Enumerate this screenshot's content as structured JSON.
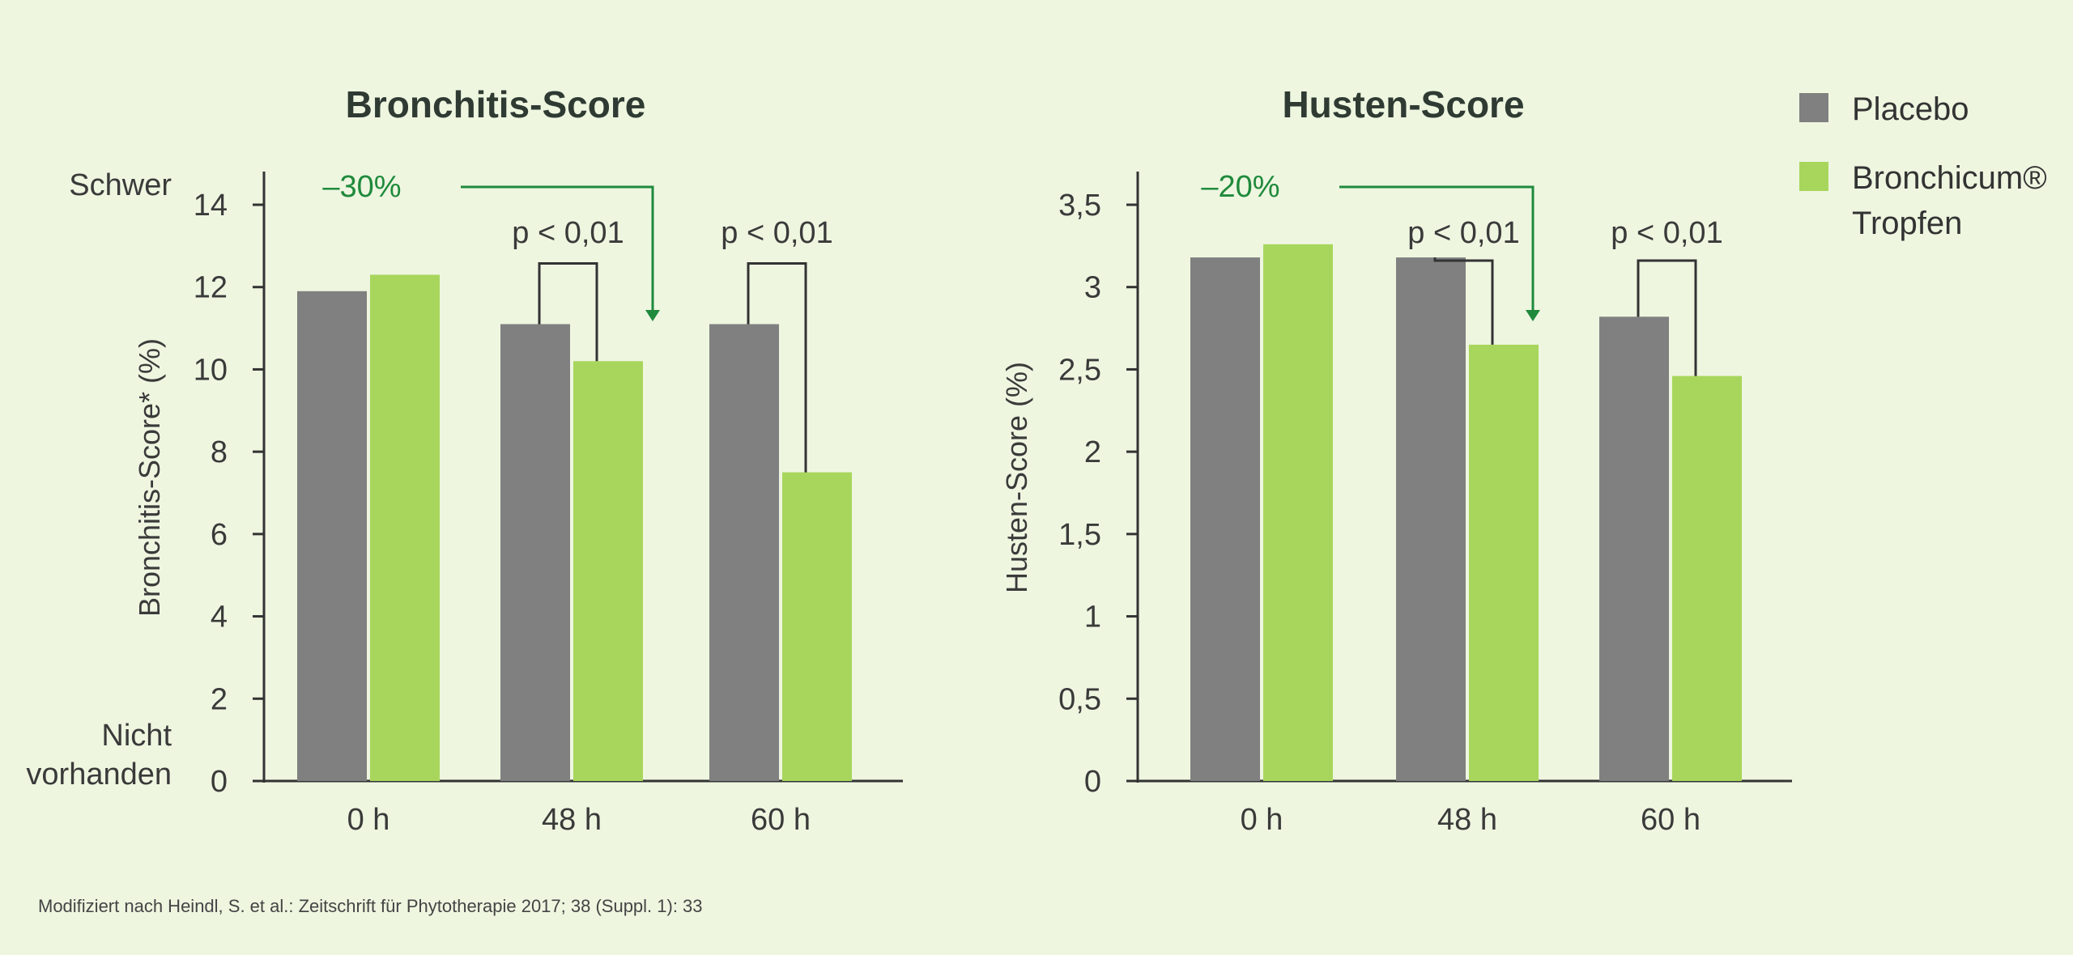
{
  "colors": {
    "placebo": "#808080",
    "bronchicum": "#a8d65c",
    "axis": "#333333",
    "annotation": "#1f8a3c",
    "background": "#eef6e0"
  },
  "legend": {
    "placement": "top-right",
    "items": [
      {
        "color": "#808080",
        "lines": [
          "Placebo"
        ]
      },
      {
        "color": "#a8d65c",
        "lines": [
          "Bronchicum®",
          "Tropfen"
        ]
      }
    ]
  },
  "source": "Modifiziert nach Heindl, S. et al.: Zeitschrift für Phytotherapie 2017; 38 (Suppl. 1): 33",
  "chart_data": [
    {
      "type": "bar",
      "title": "Bronchitis-Score",
      "ylabel": "Bronchitis-Score* (%)",
      "xlabel": "",
      "categories": [
        "0 h",
        "48 h",
        "60 h"
      ],
      "ylim": [
        0,
        14
      ],
      "yticks": [
        0,
        2,
        4,
        6,
        8,
        10,
        12,
        14
      ],
      "ytick_labels": [
        "0",
        "2",
        "4",
        "6",
        "8",
        "10",
        "12",
        "14"
      ],
      "y_extreme_labels": {
        "top": [
          "Schwer"
        ],
        "bottom": [
          "Nicht",
          "vorhanden"
        ]
      },
      "grid": false,
      "series": [
        {
          "name": "Placebo",
          "values": [
            11.9,
            11.1,
            11.1
          ]
        },
        {
          "name": "Bronchicum® Tropfen",
          "values": [
            12.3,
            10.2,
            7.5
          ]
        }
      ],
      "significance": [
        {
          "category_index": 1,
          "label": "p < 0,01"
        },
        {
          "category_index": 2,
          "label": "p < 0,01"
        }
      ],
      "reduction": {
        "label": "–30%",
        "target_category_index": 1
      }
    },
    {
      "type": "bar",
      "title": "Husten-Score",
      "ylabel": "Husten-Score (%)",
      "xlabel": "",
      "categories": [
        "0 h",
        "48 h",
        "60 h"
      ],
      "ylim": [
        0,
        3.7
      ],
      "yticks": [
        0,
        0.5,
        1,
        1.5,
        2,
        2.5,
        3,
        3.5
      ],
      "ytick_labels": [
        "0",
        "0,5",
        "1",
        "1,5",
        "2",
        "2,5",
        "3",
        "3,5"
      ],
      "grid": false,
      "series": [
        {
          "name": "Placebo",
          "values": [
            3.18,
            3.18,
            2.82
          ]
        },
        {
          "name": "Bronchicum® Tropfen",
          "values": [
            3.26,
            2.65,
            2.46
          ]
        }
      ],
      "significance": [
        {
          "category_index": 1,
          "label": "p < 0,01"
        },
        {
          "category_index": 2,
          "label": "p < 0,01"
        }
      ],
      "reduction": {
        "label": "–20%",
        "target_category_index": 1
      }
    }
  ]
}
